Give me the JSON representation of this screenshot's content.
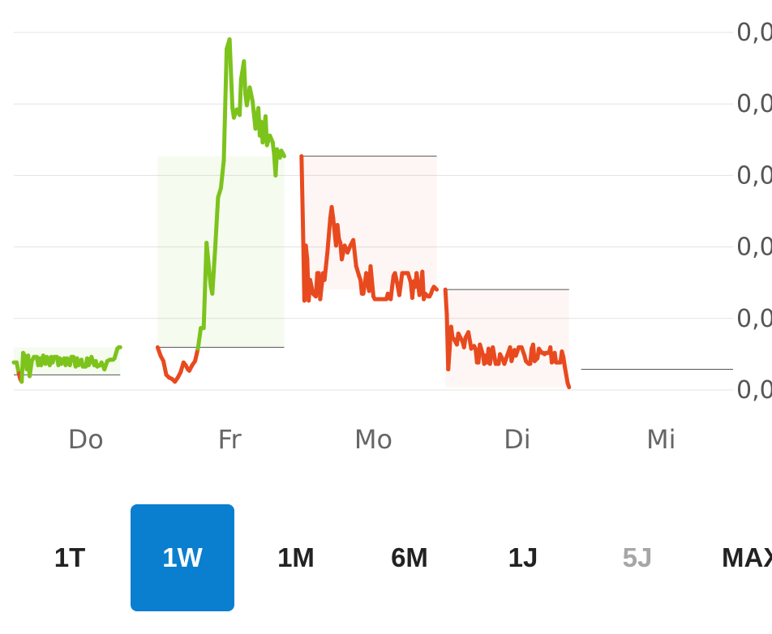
{
  "chart_data": {
    "type": "line",
    "x_labels": [
      "Do",
      "Fr",
      "Mo",
      "Di",
      "Mi"
    ],
    "y_tick_labels": [
      "0,0",
      "0,0",
      "0,0",
      "0,0",
      "0,0",
      "0,0"
    ],
    "colors": {
      "up": "#7cc31c",
      "down": "#e84a1f",
      "grid": "#e3e3e3"
    },
    "days": [
      {
        "label": "Do",
        "prev_close": 0.6,
        "points": [
          [
            0,
            1.5
          ],
          [
            2,
            1.5
          ],
          [
            3.5,
            0.7
          ],
          [
            4.5,
            0.3
          ],
          [
            5.5,
            0.1
          ],
          [
            6.5,
            2.2
          ],
          [
            8,
            1.9
          ],
          [
            9,
            1.0
          ],
          [
            10,
            2.0
          ],
          [
            11,
            0.5
          ],
          [
            12.5,
            1.6
          ],
          [
            14,
            1.9
          ],
          [
            16,
            1.9
          ],
          [
            17,
            1.3
          ],
          [
            18,
            1.8
          ],
          [
            19,
            1.3
          ],
          [
            20.5,
            2.0
          ],
          [
            22,
            1.4
          ],
          [
            23,
            1.9
          ],
          [
            25,
            1.3
          ],
          [
            26,
            1.9
          ],
          [
            27,
            1.5
          ],
          [
            28,
            1.9
          ],
          [
            30,
            1.9
          ],
          [
            31,
            1.3
          ],
          [
            32,
            1.8
          ],
          [
            33,
            1.4
          ],
          [
            35,
            1.8
          ],
          [
            36,
            1.3
          ],
          [
            37,
            1.8
          ],
          [
            39,
            1.3
          ],
          [
            40,
            1.9
          ],
          [
            41.5,
            1.9
          ],
          [
            43,
            1.2
          ],
          [
            44,
            1.8
          ],
          [
            45,
            1.3
          ],
          [
            47,
            1.7
          ],
          [
            48,
            1.2
          ],
          [
            50,
            1.2
          ],
          [
            51,
            1.8
          ],
          [
            52,
            1.3
          ],
          [
            53,
            1.5
          ],
          [
            54,
            1.9
          ],
          [
            56,
            1.3
          ],
          [
            57,
            1.6
          ],
          [
            58,
            1.2
          ],
          [
            60,
            1.3
          ],
          [
            61,
            1.5
          ],
          [
            63,
            1.0
          ],
          [
            65,
            1.6
          ],
          [
            67,
            1.7
          ],
          [
            69,
            1.7
          ],
          [
            70,
            1.8
          ],
          [
            72,
            2.5
          ],
          [
            73,
            2.6
          ],
          [
            74,
            2.6
          ]
        ]
      },
      {
        "label": "Fr",
        "prev_close": 2.6,
        "points": [
          [
            0,
            2.6
          ],
          [
            2,
            2.0
          ],
          [
            4,
            1.6
          ],
          [
            6,
            0.6
          ],
          [
            8,
            0.4
          ],
          [
            10,
            0.3
          ],
          [
            12,
            0.1
          ],
          [
            14,
            0.4
          ],
          [
            16,
            0.8
          ],
          [
            18,
            1.5
          ],
          [
            19.5,
            1.3
          ],
          [
            21,
            1.0
          ],
          [
            22,
            0.9
          ],
          [
            24,
            1.3
          ],
          [
            26,
            1.6
          ],
          [
            28,
            2.5
          ],
          [
            30,
            4.0
          ],
          [
            32,
            4.0
          ],
          [
            34,
            10.2
          ],
          [
            36,
            8.0
          ],
          [
            37,
            7.0
          ],
          [
            38,
            6.5
          ],
          [
            40,
            9.8
          ],
          [
            42,
            13.5
          ],
          [
            44,
            14.2
          ],
          [
            46,
            16.2
          ],
          [
            48,
            24.3
          ],
          [
            50,
            25.0
          ],
          [
            52,
            20.0
          ],
          [
            53,
            19.3
          ],
          [
            55,
            19.9
          ],
          [
            57,
            19.5
          ],
          [
            58,
            22.1
          ],
          [
            60,
            23.4
          ],
          [
            61,
            21.0
          ],
          [
            62,
            20.2
          ],
          [
            64,
            21.5
          ],
          [
            66,
            20.5
          ],
          [
            68,
            18.5
          ],
          [
            70,
            20.0
          ],
          [
            71,
            18.0
          ],
          [
            72,
            19.0
          ],
          [
            73,
            17.5
          ],
          [
            75,
            19.4
          ],
          [
            76,
            17.3
          ],
          [
            78,
            18.0
          ],
          [
            80,
            17.5
          ],
          [
            81,
            16.6
          ],
          [
            82,
            15.1
          ],
          [
            83,
            17.0
          ],
          [
            85,
            16.4
          ],
          [
            86,
            16.9
          ],
          [
            88,
            16.5
          ]
        ]
      },
      {
        "label": "Mo",
        "prev_close": 16.5,
        "points": [
          [
            0,
            16.5
          ],
          [
            1,
            11.5
          ],
          [
            2,
            6.0
          ],
          [
            3,
            10.0
          ],
          [
            4,
            9.0
          ],
          [
            5,
            6.0
          ],
          [
            6,
            7.5
          ],
          [
            8,
            6.5
          ],
          [
            10,
            6.3
          ],
          [
            11,
            8.0
          ],
          [
            12,
            8.0
          ],
          [
            13,
            6.1
          ],
          [
            15,
            8.0
          ],
          [
            16,
            7.5
          ],
          [
            18,
            9.5
          ],
          [
            20,
            12.0
          ],
          [
            21,
            12.8
          ],
          [
            22,
            12.0
          ],
          [
            24,
            10.0
          ],
          [
            25,
            11.5
          ],
          [
            26,
            10.5
          ],
          [
            27,
            10.2
          ],
          [
            28,
            9.0
          ],
          [
            30,
            10.0
          ],
          [
            32,
            9.5
          ],
          [
            34,
            10.0
          ],
          [
            36,
            10.4
          ],
          [
            38,
            8.5
          ],
          [
            40,
            7.8
          ],
          [
            41,
            7.5
          ],
          [
            42,
            6.5
          ],
          [
            43,
            6.5
          ],
          [
            45,
            8.0
          ],
          [
            46,
            7.2
          ],
          [
            47,
            6.7
          ],
          [
            48,
            8.5
          ],
          [
            50,
            6.3
          ],
          [
            51,
            6.1
          ],
          [
            53,
            6.1
          ],
          [
            55,
            6.1
          ],
          [
            57,
            6.1
          ],
          [
            59,
            6.1
          ],
          [
            60,
            6.5
          ],
          [
            61,
            6.2
          ],
          [
            62,
            6.1
          ],
          [
            63,
            7.0
          ],
          [
            64,
            7.8
          ],
          [
            65,
            8.0
          ],
          [
            67,
            7.0
          ],
          [
            68,
            6.4
          ],
          [
            70,
            8.0
          ],
          [
            72,
            8.0
          ],
          [
            74,
            8.0
          ],
          [
            76,
            7.3
          ],
          [
            77,
            6.2
          ],
          [
            78,
            7.4
          ],
          [
            79,
            7.0
          ],
          [
            80,
            8.0
          ],
          [
            82,
            6.4
          ],
          [
            83,
            7.0
          ],
          [
            84,
            8.1
          ],
          [
            85,
            6.1
          ],
          [
            86,
            6.5
          ],
          [
            88,
            6.3
          ],
          [
            89,
            6.3
          ],
          [
            90,
            6.5
          ],
          [
            91,
            6.8
          ],
          [
            92,
            7.0
          ],
          [
            93,
            6.9
          ],
          [
            94,
            6.8
          ]
        ]
      },
      {
        "label": "Di",
        "prev_close": 6.8,
        "points": [
          [
            0,
            6.8
          ],
          [
            1,
            5.0
          ],
          [
            2,
            1.0
          ],
          [
            3,
            2.5
          ],
          [
            4,
            4.1
          ],
          [
            5,
            3.3
          ],
          [
            6,
            3.2
          ],
          [
            8,
            2.8
          ],
          [
            9,
            3.6
          ],
          [
            10,
            3.4
          ],
          [
            12,
            3.0
          ],
          [
            13,
            2.6
          ],
          [
            14,
            3.3
          ],
          [
            16,
            3.7
          ],
          [
            18,
            2.5
          ],
          [
            20,
            2.7
          ],
          [
            21,
            2.5
          ],
          [
            22,
            1.5
          ],
          [
            23,
            1.5
          ],
          [
            24,
            2.8
          ],
          [
            26,
            2.1
          ],
          [
            27,
            1.4
          ],
          [
            28,
            2.0
          ],
          [
            29,
            1.5
          ],
          [
            30,
            2.5
          ],
          [
            31,
            1.4
          ],
          [
            33,
            2.6
          ],
          [
            35,
            1.4
          ],
          [
            37,
            1.4
          ],
          [
            38,
            2.1
          ],
          [
            40,
            1.7
          ],
          [
            41,
            1.4
          ],
          [
            42,
            1.7
          ],
          [
            43,
            2.0
          ],
          [
            45,
            2.6
          ],
          [
            46,
            1.6
          ],
          [
            48,
            2.4
          ],
          [
            49,
            2.0
          ],
          [
            50,
            2.3
          ],
          [
            51,
            2.6
          ],
          [
            53,
            2.6
          ],
          [
            55,
            2.0
          ],
          [
            56,
            1.6
          ],
          [
            58,
            1.4
          ],
          [
            59,
            1.4
          ],
          [
            60,
            2.5
          ],
          [
            61,
            2.8
          ],
          [
            62,
            1.6
          ],
          [
            64,
            1.8
          ],
          [
            65,
            2.5
          ],
          [
            67,
            2.2
          ],
          [
            68,
            2.2
          ],
          [
            69,
            2.1
          ],
          [
            70,
            2.2
          ],
          [
            71,
            2.2
          ],
          [
            72,
            2.2
          ],
          [
            73,
            2.6
          ],
          [
            74,
            1.5
          ],
          [
            75,
            1.6
          ],
          [
            76,
            2.2
          ],
          [
            77,
            1.5
          ],
          [
            78,
            1.5
          ],
          [
            80,
            1.5
          ],
          [
            81,
            2.3
          ],
          [
            82,
            1.9
          ],
          [
            83,
            1.2
          ],
          [
            84,
            0.6
          ],
          [
            85,
            0.0
          ],
          [
            86,
            -0.3
          ]
        ]
      }
    ],
    "y_range": [
      -0.5,
      25.5
    ],
    "grid": true,
    "legend": "none"
  },
  "periods": {
    "items": [
      {
        "label": "1T",
        "state": "normal"
      },
      {
        "label": "1W",
        "state": "active"
      },
      {
        "label": "1M",
        "state": "normal"
      },
      {
        "label": "6M",
        "state": "normal"
      },
      {
        "label": "1J",
        "state": "normal"
      },
      {
        "label": "5J",
        "state": "disabled"
      },
      {
        "label": "MAX",
        "state": "normal"
      }
    ]
  }
}
